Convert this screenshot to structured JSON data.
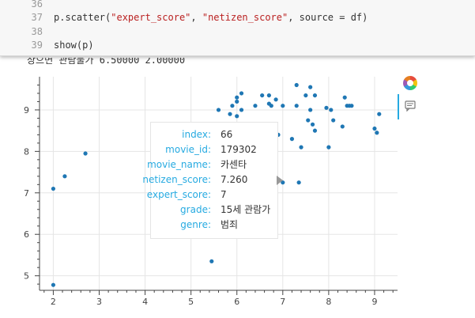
{
  "code": {
    "lines": [
      {
        "num": "36",
        "text": ""
      },
      {
        "num": "37",
        "pre": "p.scatter(",
        "s1": "\"expert_score\"",
        "mid": ", ",
        "s2": "\"netizen_score\"",
        "post": ", source = df)"
      },
      {
        "num": "38",
        "text": ""
      },
      {
        "num": "39",
        "text": "show(p)"
      }
    ]
  },
  "cutoff_output": "상으면 관람불가   6.50000   2.00000",
  "chart_data": {
    "type": "scatter",
    "x": [
      2,
      2,
      2.25,
      2.7,
      5.45,
      5.6,
      5.85,
      5.9,
      6.0,
      6.0,
      6.0,
      6.0,
      6.1,
      6.1,
      6.2,
      6.3,
      6.4,
      6.55,
      6.6,
      6.7,
      6.7,
      6.75,
      6.8,
      6.8,
      6.85,
      6.9,
      7.0,
      7.0,
      7.2,
      7.3,
      7.3,
      7.35,
      7.4,
      7.5,
      7.55,
      7.6,
      7.6,
      7.65,
      7.7,
      7.7,
      7.95,
      8.0,
      8.05,
      8.1,
      8.3,
      8.35,
      8.4,
      8.45,
      8.5,
      9.0,
      9.05,
      9.1
    ],
    "y": [
      4.78,
      7.1,
      7.4,
      7.95,
      5.35,
      9.0,
      8.9,
      9.1,
      9.3,
      9.2,
      8.85,
      8.6,
      9.0,
      9.4,
      8.6,
      8.3,
      9.1,
      9.35,
      8.2,
      9.35,
      9.15,
      9.1,
      8.5,
      8.05,
      9.25,
      8.4,
      9.1,
      7.25,
      8.3,
      9.6,
      9.1,
      7.25,
      8.1,
      9.35,
      8.75,
      9.55,
      9.0,
      8.65,
      9.35,
      8.5,
      9.05,
      8.1,
      9.0,
      8.75,
      8.6,
      9.3,
      9.1,
      9.1,
      9.1,
      8.55,
      8.45,
      8.9
    ],
    "xlim": [
      1.7,
      9.5
    ],
    "ylim": [
      4.65,
      9.8
    ],
    "x_ticks": [
      "2",
      "3",
      "4",
      "5",
      "6",
      "7",
      "8",
      "9"
    ],
    "y_ticks": [
      "5",
      "6",
      "7",
      "8",
      "9"
    ],
    "grid": true,
    "color": "#1f77b4",
    "title": "",
    "xlabel": "",
    "ylabel": ""
  },
  "toolbar": {
    "logo_icon": "bokeh-logo-icon",
    "hover_icon": "hover-tool-icon"
  },
  "tooltip": {
    "rows": [
      {
        "key": "index:",
        "value": "66"
      },
      {
        "key": "movie_id:",
        "value": "179302"
      },
      {
        "key": "movie_name:",
        "value": "카센타"
      },
      {
        "key": "netizen_score:",
        "value": "7.260"
      },
      {
        "key": "expert_score:",
        "value": "7"
      },
      {
        "key": "grade:",
        "value": "15세 관람가"
      },
      {
        "key": "genre:",
        "value": "범죄"
      }
    ],
    "accent": "#26aae1"
  }
}
